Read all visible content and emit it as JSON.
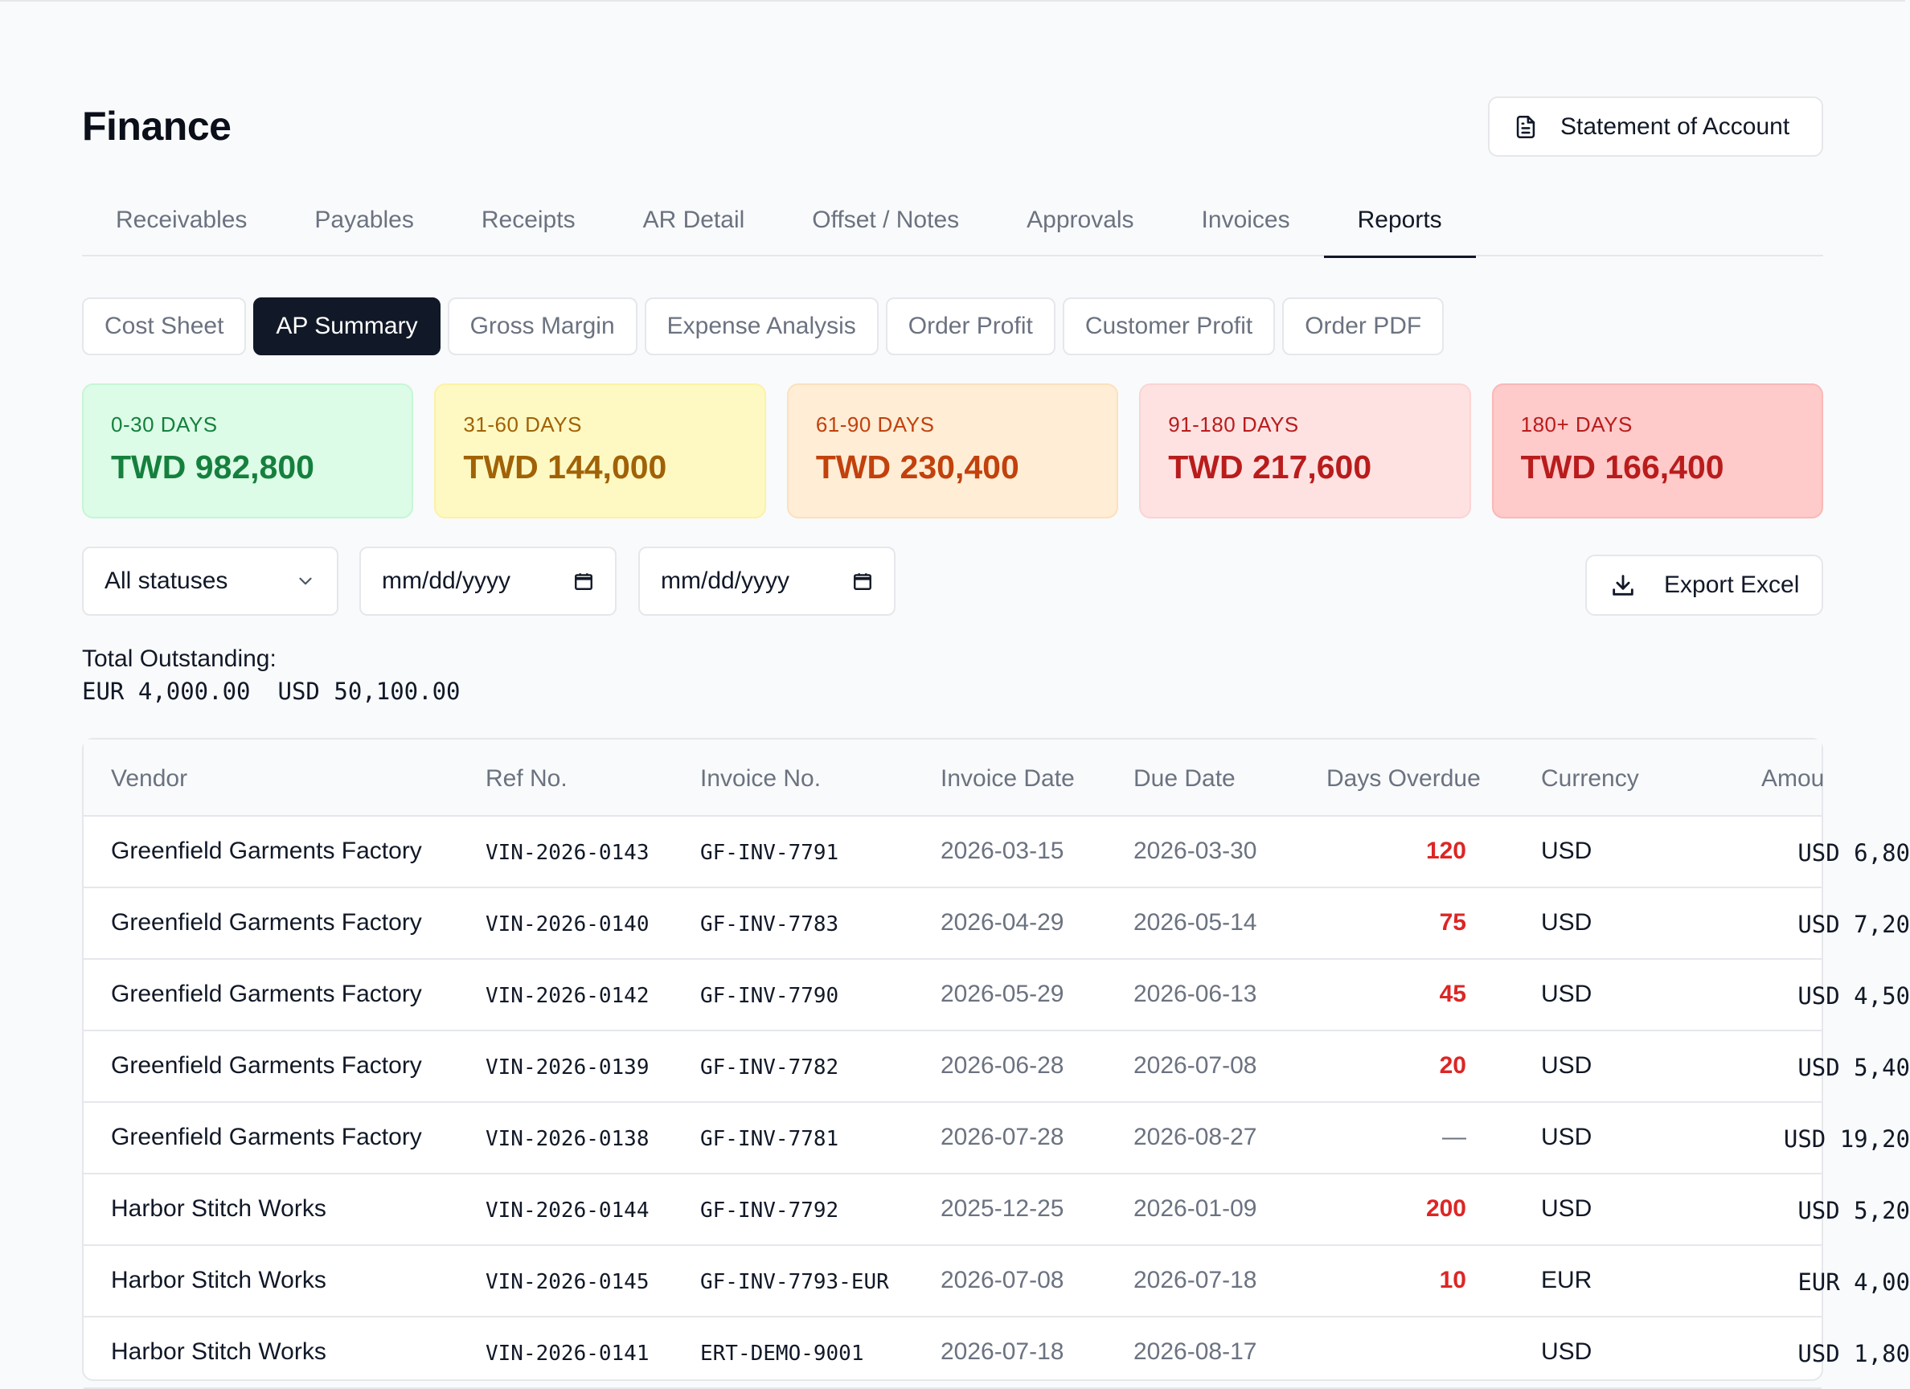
{
  "page": {
    "title": "Finance",
    "statement_button": "Statement of Account"
  },
  "tabs": [
    "Receivables",
    "Payables",
    "Receipts",
    "AR Detail",
    "Offset / Notes",
    "Approvals",
    "Invoices",
    "Reports"
  ],
  "active_tab": "Reports",
  "subtabs": [
    "Cost Sheet",
    "AP Summary",
    "Gross Margin",
    "Expense Analysis",
    "Order Profit",
    "Customer Profit",
    "Order PDF"
  ],
  "active_subtab": "AP Summary",
  "aging": [
    {
      "label": "0-30 DAYS",
      "value": "TWD 982,800"
    },
    {
      "label": "31-60 DAYS",
      "value": "TWD 144,000"
    },
    {
      "label": "61-90 DAYS",
      "value": "TWD 230,400"
    },
    {
      "label": "91-180 DAYS",
      "value": "TWD 217,600"
    },
    {
      "label": "180+ DAYS",
      "value": "TWD 166,400"
    }
  ],
  "filters": {
    "status": "All statuses",
    "date_from": "mm/dd/yyyy",
    "date_to": "mm/dd/yyyy",
    "export": "Export Excel"
  },
  "totals": {
    "label": "Total Outstanding:",
    "values": [
      "EUR 4,000.00",
      "USD 50,100.00"
    ]
  },
  "table": {
    "headers": [
      "Vendor",
      "Ref No.",
      "Invoice No.",
      "Invoice Date",
      "Due Date",
      "Days Overdue",
      "Currency",
      "Amou"
    ],
    "rows": [
      [
        "Greenfield Garments Factory",
        "VIN-2026-0143",
        "GF-INV-7791",
        "2026-03-15",
        "2026-03-30",
        "120",
        "USD",
        "USD 6,80"
      ],
      [
        "Greenfield Garments Factory",
        "VIN-2026-0140",
        "GF-INV-7783",
        "2026-04-29",
        "2026-05-14",
        "75",
        "USD",
        "USD 7,20"
      ],
      [
        "Greenfield Garments Factory",
        "VIN-2026-0142",
        "GF-INV-7790",
        "2026-05-29",
        "2026-06-13",
        "45",
        "USD",
        "USD 4,50"
      ],
      [
        "Greenfield Garments Factory",
        "VIN-2026-0139",
        "GF-INV-7782",
        "2026-06-28",
        "2026-07-08",
        "20",
        "USD",
        "USD 5,40"
      ],
      [
        "Greenfield Garments Factory",
        "VIN-2026-0138",
        "GF-INV-7781",
        "2026-07-28",
        "2026-08-27",
        "—",
        "USD",
        "USD 19,20"
      ],
      [
        "Harbor Stitch Works",
        "VIN-2026-0144",
        "GF-INV-7792",
        "2025-12-25",
        "2026-01-09",
        "200",
        "USD",
        "USD 5,20"
      ],
      [
        "Harbor Stitch Works",
        "VIN-2026-0145",
        "GF-INV-7793-EUR",
        "2026-07-08",
        "2026-07-18",
        "10",
        "EUR",
        "EUR 4,00"
      ],
      [
        "Harbor Stitch Works",
        "VIN-2026-0141",
        "ERT-DEMO-9001",
        "2026-07-18",
        "2026-08-17",
        "",
        "USD",
        "USD 1,80"
      ]
    ]
  }
}
